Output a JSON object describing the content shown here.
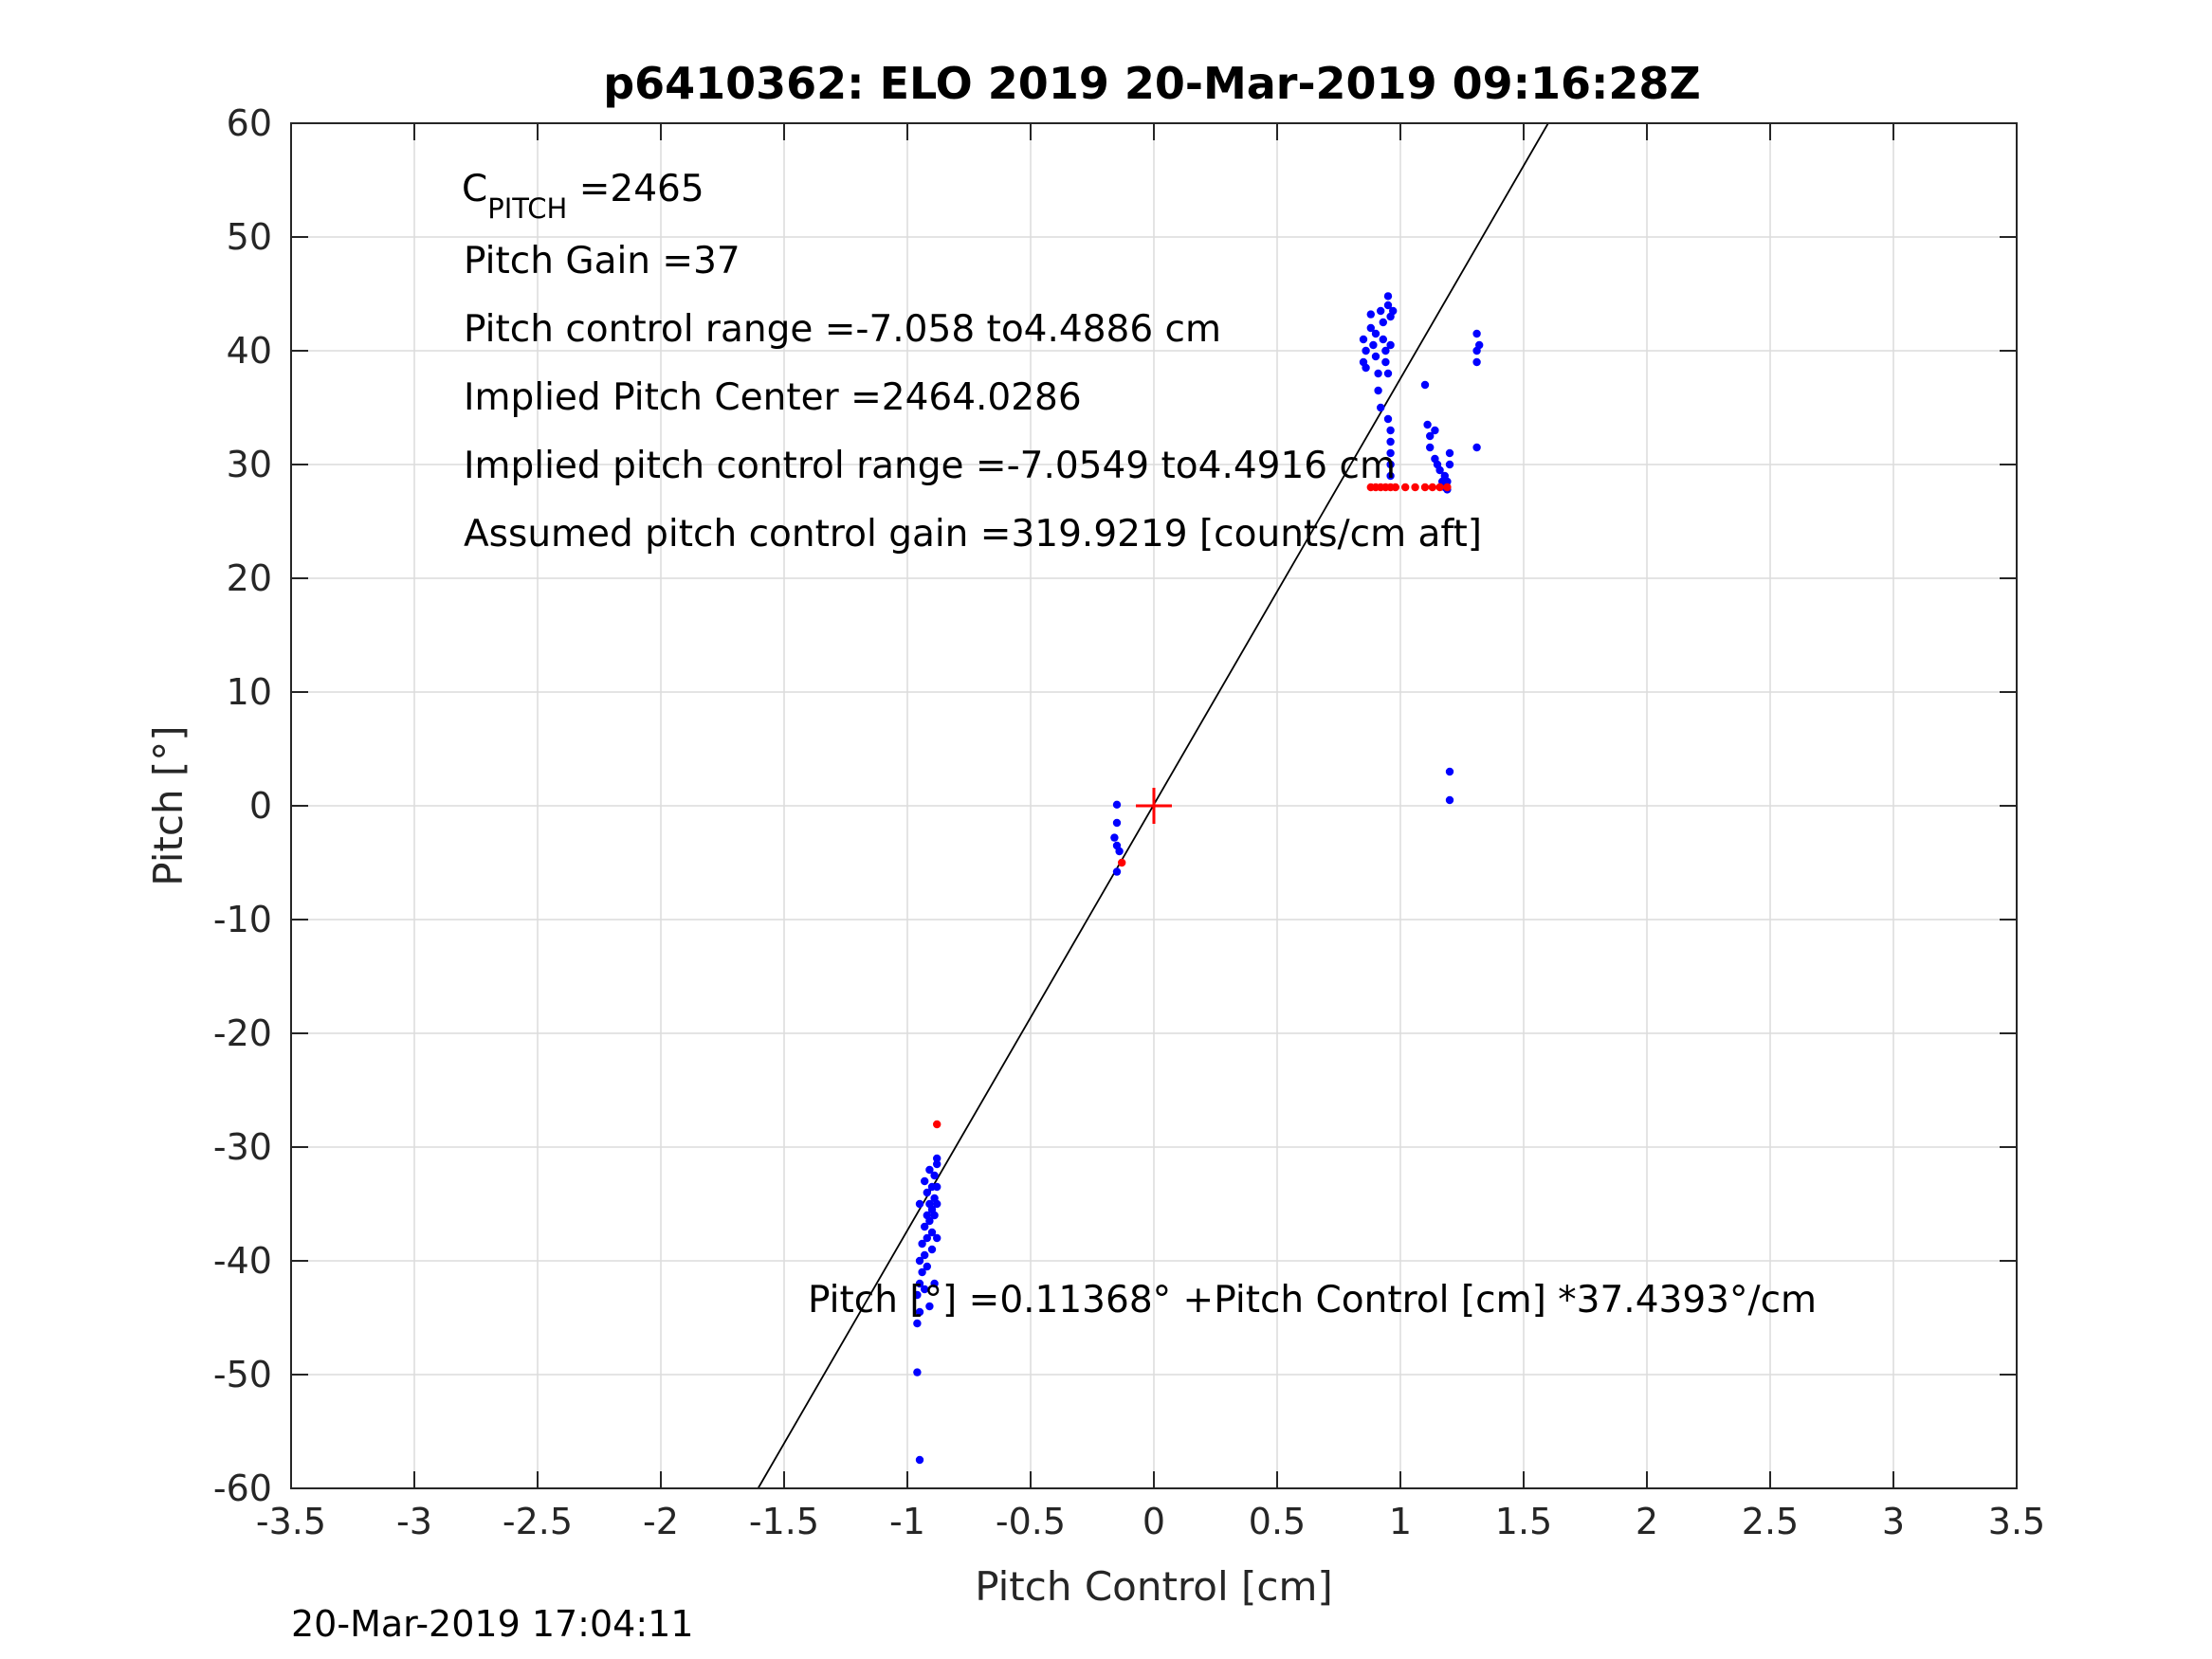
{
  "chart_data": {
    "type": "scatter",
    "title": "p6410362: ELO 2019 20-Mar-2019 09:16:28Z",
    "xlabel": "Pitch Control [cm]",
    "ylabel": "Pitch [°]",
    "xlim": [
      -3.5,
      3.5
    ],
    "ylim": [
      -60,
      60
    ],
    "xticks": [
      -3.5,
      -3,
      -2.5,
      -2,
      -1.5,
      -1,
      -0.5,
      0,
      0.5,
      1,
      1.5,
      2,
      2.5,
      3,
      3.5
    ],
    "xtick_labels": [
      "-3.5",
      "-3",
      "-2.5",
      "-2",
      "-1.5",
      "-1",
      "-0.5",
      "0",
      "0.5",
      "1",
      "1.5",
      "2",
      "2.5",
      "3",
      "3.5"
    ],
    "yticks": [
      -60,
      -50,
      -40,
      -30,
      -20,
      -10,
      0,
      10,
      20,
      30,
      40,
      50,
      60
    ],
    "ytick_labels": [
      "-60",
      "-50",
      "-40",
      "-30",
      "-20",
      "-10",
      "0",
      "10",
      "20",
      "30",
      "40",
      "50",
      "60"
    ],
    "grid": true,
    "colors": {
      "blue": "#0000ff",
      "red": "#ff0000",
      "line": "#000000",
      "grid": "#dcdcdc",
      "axis": "#262626"
    },
    "fit_line": {
      "intercept": 0.11368,
      "slope": 37.4393
    },
    "center_marker": {
      "x": 0,
      "y": 0,
      "color": "#ff0000",
      "marker": "plus"
    },
    "series": [
      {
        "color": "#0000ff",
        "points": [
          [
            -0.95,
            -57.5
          ],
          [
            -0.96,
            -49.8
          ],
          [
            -0.96,
            -45.5
          ],
          [
            -0.95,
            -44.5
          ],
          [
            -0.96,
            -43.0
          ],
          [
            -0.95,
            -42.0
          ],
          [
            -0.94,
            -41.0
          ],
          [
            -0.95,
            -40.0
          ],
          [
            -0.93,
            -39.5
          ],
          [
            -0.94,
            -38.5
          ],
          [
            -0.92,
            -38.0
          ],
          [
            -0.93,
            -37.0
          ],
          [
            -0.91,
            -36.5
          ],
          [
            -0.92,
            -36.0
          ],
          [
            -0.9,
            -35.5
          ],
          [
            -0.91,
            -35.0
          ],
          [
            -0.89,
            -34.5
          ],
          [
            -0.92,
            -34.0
          ],
          [
            -0.9,
            -33.5
          ],
          [
            -0.93,
            -33.0
          ],
          [
            -0.89,
            -32.5
          ],
          [
            -0.91,
            -32.0
          ],
          [
            -0.88,
            -31.5
          ],
          [
            -0.88,
            -31.0
          ],
          [
            -0.9,
            -37.5
          ],
          [
            -0.89,
            -36.0
          ],
          [
            -0.88,
            -35.0
          ],
          [
            -0.88,
            -33.5
          ],
          [
            -0.92,
            -40.5
          ],
          [
            -0.95,
            -35.0
          ],
          [
            -0.91,
            -44.0
          ],
          [
            -0.89,
            -42.0
          ],
          [
            -0.9,
            -39.0
          ],
          [
            -0.88,
            -38.0
          ],
          [
            -0.93,
            -42.5
          ],
          [
            -0.15,
            0.1
          ],
          [
            -0.15,
            -1.5
          ],
          [
            -0.16,
            -2.8
          ],
          [
            -0.15,
            -3.5
          ],
          [
            -0.14,
            -4.0
          ],
          [
            -0.15,
            -5.8
          ],
          [
            0.85,
            41.0
          ],
          [
            0.86,
            40.0
          ],
          [
            0.85,
            39.0
          ],
          [
            0.86,
            38.5
          ],
          [
            0.88,
            42.0
          ],
          [
            0.88,
            43.2
          ],
          [
            0.89,
            40.5
          ],
          [
            0.9,
            41.5
          ],
          [
            0.9,
            39.5
          ],
          [
            0.91,
            38.0
          ],
          [
            0.91,
            36.5
          ],
          [
            0.92,
            35.0
          ],
          [
            0.92,
            43.5
          ],
          [
            0.93,
            42.5
          ],
          [
            0.93,
            41.0
          ],
          [
            0.94,
            40.0
          ],
          [
            0.94,
            39.0
          ],
          [
            0.95,
            44.8
          ],
          [
            0.95,
            44.0
          ],
          [
            0.95,
            38.0
          ],
          [
            0.96,
            43.0
          ],
          [
            0.96,
            40.5
          ],
          [
            0.97,
            43.5
          ],
          [
            0.96,
            33.0
          ],
          [
            0.96,
            32.0
          ],
          [
            0.96,
            31.0
          ],
          [
            0.96,
            30.0
          ],
          [
            0.96,
            29.0
          ],
          [
            0.95,
            34.0
          ],
          [
            1.1,
            37.0
          ],
          [
            1.11,
            33.5
          ],
          [
            1.12,
            32.5
          ],
          [
            1.12,
            31.5
          ],
          [
            1.14,
            33.0
          ],
          [
            1.14,
            30.5
          ],
          [
            1.15,
            30.0
          ],
          [
            1.16,
            29.5
          ],
          [
            1.17,
            28.5
          ],
          [
            1.18,
            29.0
          ],
          [
            1.18,
            28.0
          ],
          [
            1.19,
            27.8
          ],
          [
            1.2,
            31.0
          ],
          [
            1.2,
            30.0
          ],
          [
            1.19,
            28.5
          ],
          [
            1.31,
            41.5
          ],
          [
            1.31,
            40.0
          ],
          [
            1.31,
            39.0
          ],
          [
            1.32,
            40.5
          ],
          [
            1.31,
            31.5
          ],
          [
            1.2,
            3.0
          ],
          [
            1.2,
            0.5
          ]
        ]
      },
      {
        "color": "#ff0000",
        "points": [
          [
            -0.88,
            -28.0
          ],
          [
            -0.13,
            -5.0
          ],
          [
            0.88,
            28.0
          ],
          [
            0.9,
            28.0
          ],
          [
            0.92,
            28.0
          ],
          [
            0.94,
            28.0
          ],
          [
            0.96,
            28.0
          ],
          [
            0.98,
            28.0
          ],
          [
            1.02,
            28.0
          ],
          [
            1.06,
            28.0
          ],
          [
            1.1,
            28.0
          ],
          [
            1.13,
            28.0
          ],
          [
            1.16,
            28.0
          ],
          [
            1.19,
            28.0
          ]
        ]
      }
    ],
    "annotations": [
      {
        "main": "C",
        "sub": "PITCH",
        "tail": " =2465"
      },
      {
        "text": "Pitch Gain =37"
      },
      {
        "text": "Pitch control range =-7.058 to4.4886 cm"
      },
      {
        "text": "Implied Pitch Center =2464.0286"
      },
      {
        "text": "Implied pitch control range =-7.0549 to4.4916 cm"
      },
      {
        "text": "Assumed pitch control gain =319.9219 [counts/cm aft]"
      }
    ],
    "equation": "Pitch [°] =0.11368° +Pitch Control [cm] *37.4393°/cm",
    "footer": "20-Mar-2019 17:04:11"
  }
}
